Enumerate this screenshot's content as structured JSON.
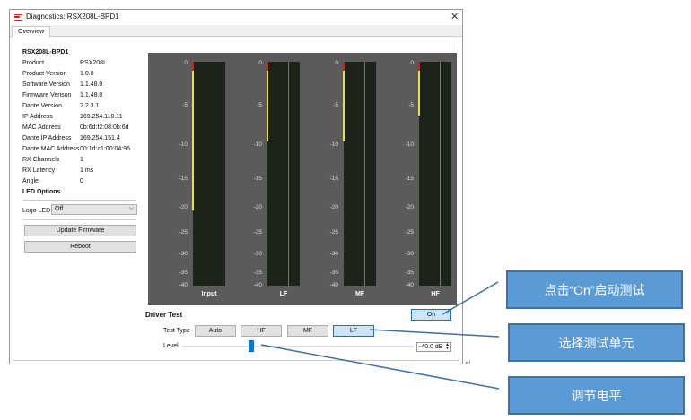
{
  "window": {
    "title": "Diagnostics: RSX208L-BPD1",
    "tab": "Overview"
  },
  "device": {
    "name": "RSX208L-BPD1",
    "props": [
      {
        "label": "Product",
        "value": "RSX208L"
      },
      {
        "label": "Product Version",
        "value": "1.0.0"
      },
      {
        "label": "Software Version",
        "value": "1.1.48.0"
      },
      {
        "label": "Firmware Verison",
        "value": "1.1.48.0"
      },
      {
        "label": "Dante Version",
        "value": "2.2.3.1"
      },
      {
        "label": "IP Address",
        "value": "169.254.110.11"
      },
      {
        "label": "MAC Address",
        "value": "0b:6d:f2:08:0b:6d"
      },
      {
        "label": "Dante IP Address",
        "value": "169.254.151.4"
      },
      {
        "label": "Dante MAC Address",
        "value": "00:1d:c1:00:04:96"
      },
      {
        "label": "RX Channels",
        "value": "1"
      },
      {
        "label": "RX Latency",
        "value": "1 ms"
      },
      {
        "label": "Angle",
        "value": "0"
      }
    ]
  },
  "led": {
    "heading": "LED Options",
    "label": "Logo LED",
    "value": "Off"
  },
  "buttons": {
    "update": "Update Firmware",
    "reboot": "Reboot"
  },
  "meters": {
    "ticks": [
      "0",
      "-5",
      "-10",
      "-15",
      "-20",
      "-25",
      "-30",
      "-35",
      "-40"
    ],
    "channels": [
      {
        "label": "Input",
        "peak_db": -0.8,
        "hold_db": -20.5,
        "split": false
      },
      {
        "label": "LF",
        "peak_db": -0.8,
        "hold_db": -9.5,
        "split": true
      },
      {
        "label": "MF",
        "peak_db": -0.8,
        "hold_db": -9.5,
        "split": true
      },
      {
        "label": "HF",
        "peak_db": -0.8,
        "hold_db": -6.3,
        "split": true
      }
    ],
    "colors": {
      "clip": "#cc2222",
      "hold": "#e8e040",
      "bg": "#1c2419"
    }
  },
  "driver_test": {
    "heading": "Driver Test",
    "on_label": "On",
    "test_type_label": "Test Type",
    "types": [
      {
        "label": "Auto",
        "selected": false
      },
      {
        "label": "HF",
        "selected": false
      },
      {
        "label": "MF",
        "selected": false
      },
      {
        "label": "LF",
        "selected": true
      }
    ],
    "level_label": "Level",
    "level_value": "-40.0 dB",
    "slider_fraction": 0.3
  },
  "callouts": [
    "点击“On”启动测试",
    "选择测试单元",
    "调节电平"
  ],
  "return_mark": "↵"
}
